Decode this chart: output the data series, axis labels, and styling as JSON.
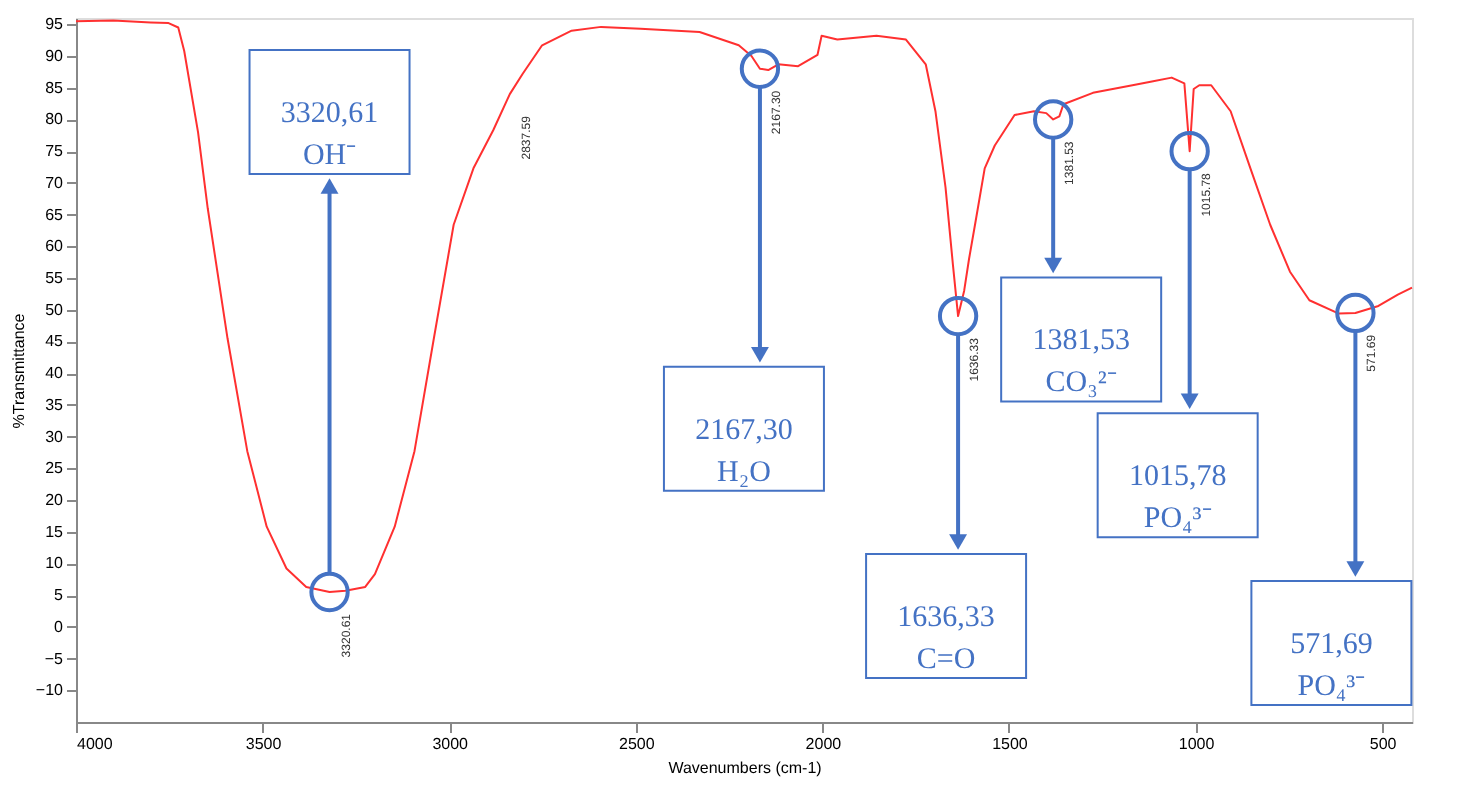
{
  "chart_data": {
    "type": "line",
    "xlabel": "Wavenumbers (cm-1)",
    "ylabel": "%Transmittance",
    "xlim": [
      4000,
      420
    ],
    "ylim": [
      -15,
      96
    ],
    "xticks": [
      {
        "value": 4000,
        "label": "4000"
      },
      {
        "value": 3500,
        "label": "3500"
      },
      {
        "value": 3000,
        "label": "3000"
      },
      {
        "value": 2500,
        "label": "2500"
      },
      {
        "value": 2000,
        "label": "2000"
      },
      {
        "value": 1500,
        "label": "1500"
      },
      {
        "value": 1000,
        "label": "1000"
      },
      500
    ],
    "yticks": [
      -10,
      -5,
      0,
      5,
      10,
      15,
      20,
      25,
      30,
      35,
      40,
      45,
      50,
      55,
      60,
      65,
      70,
      75,
      80,
      85,
      90,
      95
    ],
    "grid": false,
    "marker": "none",
    "line_style": "solid",
    "series": [
      {
        "color": "#ff3030",
        "x": [
          4000,
          3900,
          3800,
          3752,
          3726,
          3710,
          3673,
          3647,
          3594,
          3541,
          3489,
          3436,
          3383,
          3320.61,
          3278,
          3225,
          3199,
          3146,
          3093,
          3041,
          2988,
          2935,
          2882,
          2837.59,
          2803,
          2751,
          2672,
          2593,
          2487,
          2329,
          2224,
          2190,
          2167.3,
          2145,
          2118,
          2065,
          2013,
          2002,
          1960,
          1855,
          1776,
          1723,
          1697,
          1670,
          1650,
          1636.33,
          1620,
          1607,
          1591,
          1565,
          1538,
          1485,
          1433,
          1400,
          1381.53,
          1365,
          1354,
          1275,
          1169,
          1117,
          1064,
          1030,
          1015.78,
          1005,
          990,
          958,
          906,
          853,
          800,
          747,
          695,
          616,
          571.69,
          510,
          458,
          420
        ],
        "values": [
          95.5,
          95.6,
          95.3,
          95.2,
          94.5,
          90.8,
          78,
          66,
          45.5,
          27.7,
          15.8,
          9.2,
          6.3,
          5.5,
          5.7,
          6.3,
          8.3,
          15.8,
          27.7,
          45.5,
          63.4,
          72.3,
          78.3,
          84,
          87.2,
          91.7,
          94,
          94.6,
          94.3,
          93.8,
          91.7,
          90,
          88,
          87.8,
          88.7,
          88.4,
          90.2,
          93.2,
          92.6,
          93.2,
          92.6,
          88.7,
          81.3,
          69.3,
          57,
          49,
          53,
          58,
          63.4,
          72.3,
          75.9,
          80.7,
          81.3,
          81,
          80,
          80.5,
          82.4,
          84.2,
          85.4,
          86,
          86.6,
          85.7,
          75,
          84.8,
          85.4,
          85.4,
          81.3,
          72.3,
          63.4,
          56,
          51.5,
          49.4,
          49.5,
          50.6,
          52.4,
          53.5
        ]
      }
    ],
    "annotations": [
      {
        "text": "3320.61",
        "x": 3320.61,
        "y": 5.5
      },
      {
        "text": "2837.59",
        "x": 2837.59,
        "y": 84
      },
      {
        "text": "2167.30",
        "x": 2167.3,
        "y": 88
      },
      {
        "text": "1636.33",
        "x": 1636.33,
        "y": 49
      },
      {
        "text": "1381.53",
        "x": 1381.53,
        "y": 80
      },
      {
        "text": "1015.78",
        "x": 1015.78,
        "y": 75
      },
      {
        "text": "571.69",
        "x": 571.69,
        "y": 49.5
      },
      "3320,61\nOH⁻",
      "2167,30\nH₂O",
      "1636,33\nC=O",
      "1381,53\nCO₃²⁻",
      "1015,78\nPO₄³⁻",
      "571,69\nPO₄³⁻"
    ]
  }
}
